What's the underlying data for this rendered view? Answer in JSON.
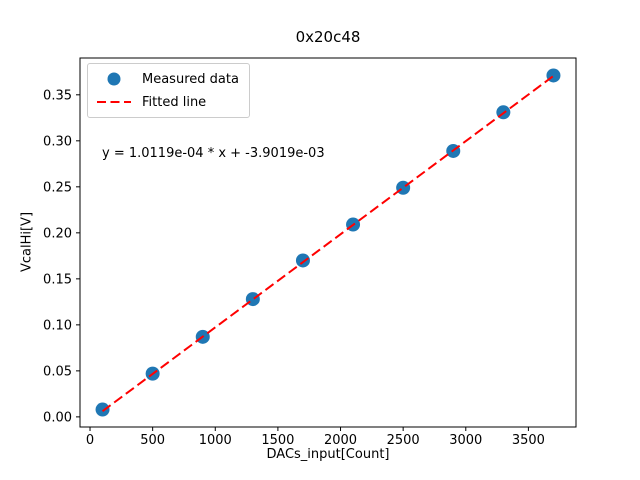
{
  "chart_data": {
    "type": "scatter",
    "title": "0x20c48",
    "xlabel": "DACs_input[Count]",
    "ylabel": "VcalHi[V]",
    "annotation": "y = 1.0119e-04 * x + -3.9019e-03",
    "series": [
      {
        "name": "Measured data",
        "type": "scatter",
        "color": "#1f77b4",
        "x": [
          100,
          500,
          900,
          1300,
          1700,
          2100,
          2500,
          2900,
          3300,
          3700
        ],
        "y": [
          0.008,
          0.047,
          0.087,
          0.128,
          0.17,
          0.209,
          0.249,
          0.289,
          0.331,
          0.371
        ]
      },
      {
        "name": "Fitted line",
        "type": "line",
        "style": "dashed",
        "color": "#ff0000",
        "slope": 0.00010119,
        "intercept": -0.0039019,
        "x_start": 100,
        "x_end": 3700
      }
    ],
    "xlim": [
      -80,
      3880
    ],
    "ylim": [
      -0.011,
      0.39
    ],
    "xticks": [
      0,
      500,
      1000,
      1500,
      2000,
      2500,
      3000,
      3500
    ],
    "xtick_labels": [
      "0",
      "500",
      "1000",
      "1500",
      "2000",
      "2500",
      "3000",
      "3500"
    ],
    "yticks": [
      0.0,
      0.05,
      0.1,
      0.15,
      0.2,
      0.25,
      0.3,
      0.35
    ],
    "ytick_labels": [
      "0.00",
      "0.05",
      "0.10",
      "0.15",
      "0.20",
      "0.25",
      "0.30",
      "0.35"
    ],
    "grid": false,
    "legend": {
      "position": "upper left",
      "entries": [
        {
          "label": "Measured data",
          "handle": "circle-marker",
          "color": "#1f77b4"
        },
        {
          "label": "Fitted line",
          "handle": "dashed-line",
          "color": "#ff0000"
        }
      ]
    },
    "axis_color": "#000000",
    "background_color": "#ffffff"
  }
}
